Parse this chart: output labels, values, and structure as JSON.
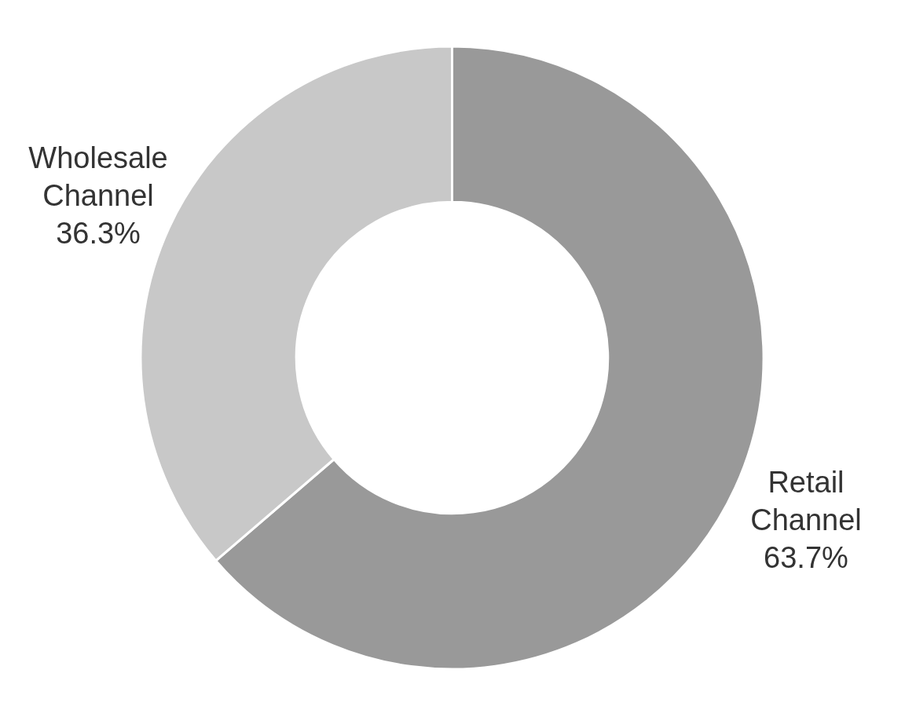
{
  "chart_data": {
    "type": "donut",
    "categories": [
      "Retail Channel",
      "Wholesale Channel"
    ],
    "values": [
      63.7,
      36.3
    ],
    "colors": [
      "#999999",
      "#c8c8c8"
    ],
    "value_labels": [
      "63.7%",
      "36.3%"
    ]
  }
}
